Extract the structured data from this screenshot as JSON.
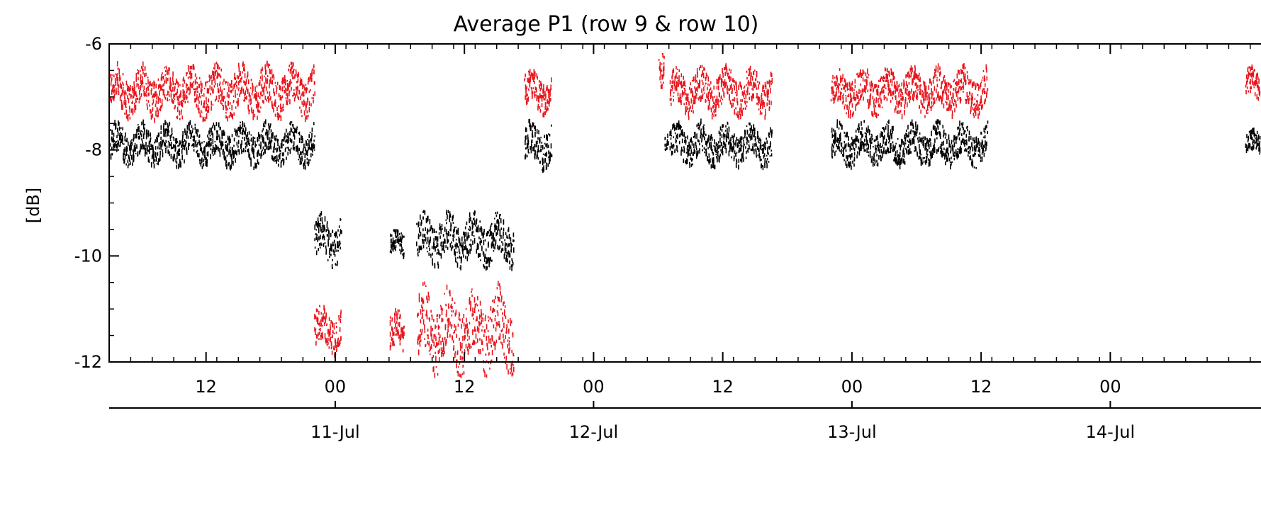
{
  "chart_data": {
    "type": "scatter",
    "title": "Average P1 (row 9 & row 10)",
    "ylabel": "[dB]",
    "xlabel": "",
    "ylim": [
      -12,
      -6
    ],
    "y_ticks": [
      -6,
      -8,
      -10,
      -12
    ],
    "y_tick_labels": [
      "-6",
      "-8",
      "-10",
      "-12"
    ],
    "xlim": [
      "2019-07-10T03:00",
      "2019-07-14T14:00"
    ],
    "x_hour_ticks": [
      {
        "t": "2019-07-10T12:00",
        "label": "12"
      },
      {
        "t": "2019-07-11T00:00",
        "label": "00"
      },
      {
        "t": "2019-07-11T12:00",
        "label": "12"
      },
      {
        "t": "2019-07-12T00:00",
        "label": "00"
      },
      {
        "t": "2019-07-12T12:00",
        "label": "12"
      },
      {
        "t": "2019-07-13T00:00",
        "label": "00"
      },
      {
        "t": "2019-07-13T12:00",
        "label": "12"
      },
      {
        "t": "2019-07-14T00:00",
        "label": "00"
      }
    ],
    "x_day_ticks": [
      {
        "t": "2019-07-11T00:00",
        "label": "11-Jul"
      },
      {
        "t": "2019-07-12T00:00",
        "label": "12-Jul"
      },
      {
        "t": "2019-07-13T00:00",
        "label": "13-Jul"
      },
      {
        "t": "2019-07-14T00:00",
        "label": "14-Jul"
      }
    ],
    "grid": false,
    "legend": "none",
    "series": [
      {
        "color": "#e8141c",
        "segments": [
          {
            "start": "2019-07-10T03:00",
            "end": "2019-07-10T22:00",
            "y_mean": -6.9,
            "spread": 0.55
          },
          {
            "start": "2019-07-10T22:00",
            "end": "2019-07-11T00:30",
            "y_mean": -11.4,
            "spread": 0.5
          },
          {
            "start": "2019-07-11T05:00",
            "end": "2019-07-11T06:20",
            "y_mean": -11.5,
            "spread": 0.5
          },
          {
            "start": "2019-07-11T07:30",
            "end": "2019-07-11T16:30",
            "y_mean": -11.4,
            "spread": 0.9
          },
          {
            "start": "2019-07-11T17:30",
            "end": "2019-07-11T20:00",
            "y_mean": -6.9,
            "spread": 0.45
          },
          {
            "start": "2019-07-12T06:00",
            "end": "2019-07-12T06:30",
            "y_mean": -6.6,
            "spread": 0.5
          },
          {
            "start": "2019-07-12T07:00",
            "end": "2019-07-12T16:30",
            "y_mean": -6.9,
            "spread": 0.5
          },
          {
            "start": "2019-07-12T22:00",
            "end": "2019-07-13T12:30",
            "y_mean": -6.9,
            "spread": 0.5
          },
          {
            "start": "2019-07-14T12:30",
            "end": "2019-07-14T14:00",
            "y_mean": -6.8,
            "spread": 0.4
          }
        ]
      },
      {
        "color": "#000000",
        "segments": [
          {
            "start": "2019-07-10T03:00",
            "end": "2019-07-10T22:00",
            "y_mean": -7.9,
            "spread": 0.45
          },
          {
            "start": "2019-07-10T22:00",
            "end": "2019-07-11T00:30",
            "y_mean": -9.7,
            "spread": 0.55
          },
          {
            "start": "2019-07-11T05:00",
            "end": "2019-07-11T06:20",
            "y_mean": -9.8,
            "spread": 0.3
          },
          {
            "start": "2019-07-11T07:30",
            "end": "2019-07-11T16:30",
            "y_mean": -9.7,
            "spread": 0.55
          },
          {
            "start": "2019-07-11T17:30",
            "end": "2019-07-11T20:00",
            "y_mean": -7.9,
            "spread": 0.5
          },
          {
            "start": "2019-07-12T06:30",
            "end": "2019-07-12T06:50",
            "y_mean": -7.9,
            "spread": 0.2
          },
          {
            "start": "2019-07-12T07:00",
            "end": "2019-07-12T16:30",
            "y_mean": -7.9,
            "spread": 0.45
          },
          {
            "start": "2019-07-12T22:00",
            "end": "2019-07-13T12:30",
            "y_mean": -7.9,
            "spread": 0.45
          },
          {
            "start": "2019-07-14T12:30",
            "end": "2019-07-14T14:00",
            "y_mean": -7.9,
            "spread": 0.3
          }
        ]
      }
    ]
  }
}
